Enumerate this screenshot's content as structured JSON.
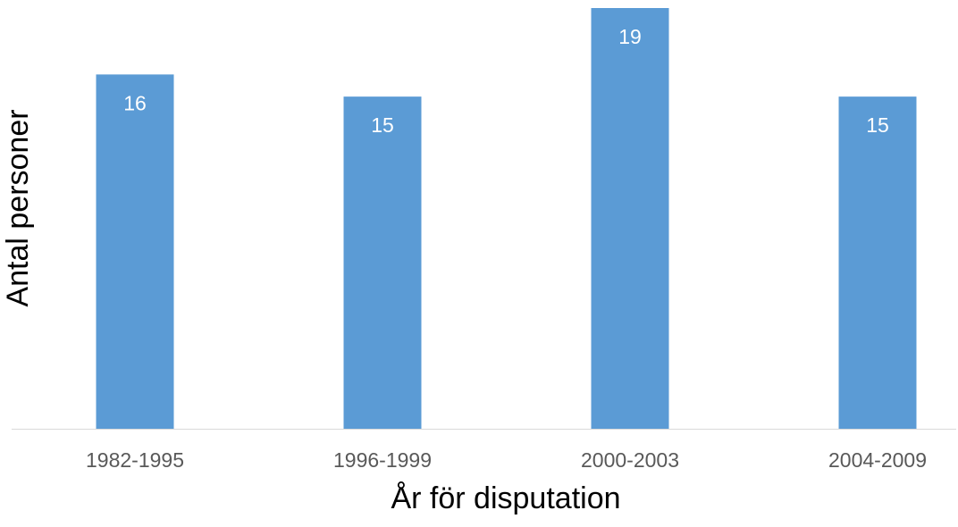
{
  "chart_data": {
    "type": "bar",
    "xlabel": "År för disputation",
    "ylabel": "Antal personer",
    "categories": [
      "1982-1995",
      "1996-1999",
      "2000-2003",
      "2004-2009"
    ],
    "values": [
      16,
      15,
      19,
      15
    ],
    "color": "#5b9bd5",
    "ylim": [
      0,
      19
    ],
    "data_labels": true
  }
}
